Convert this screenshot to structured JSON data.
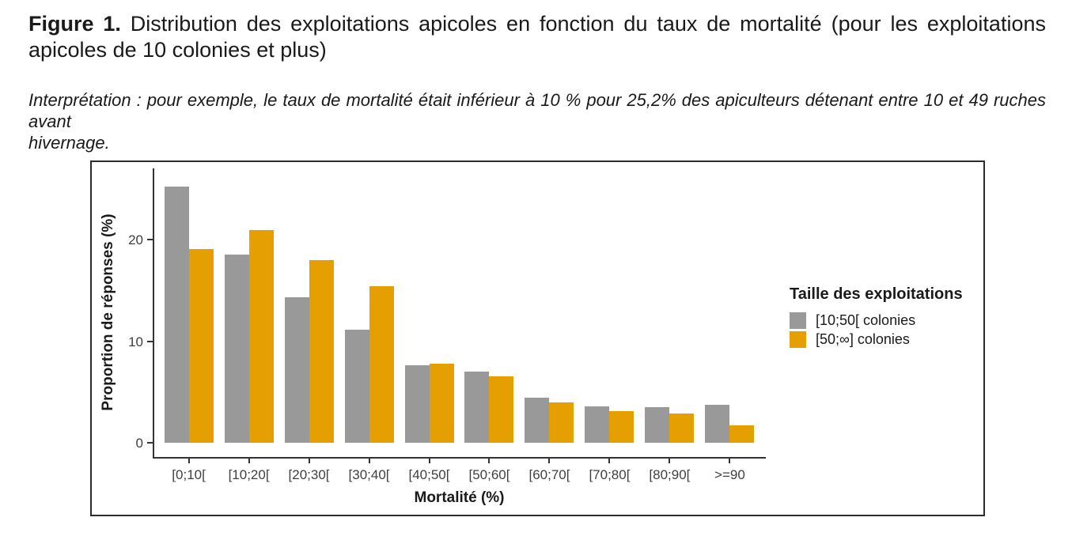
{
  "document": {
    "figure_title": {
      "label": "Figure 1.",
      "line1": "Distribution des exploitations apicoles en fonction du taux de mortalité (pour les exploitations",
      "line2": "apicoles de 10 colonies et plus)"
    },
    "interpretation": {
      "line1": "Interprétation : pour exemple, le taux de mortalité était inférieur à 10 % pour 25,2% des apiculteurs détenant entre 10 et 49 ruches avant",
      "line2": "hivernage."
    }
  },
  "chart_data": {
    "type": "bar",
    "title": "",
    "xlabel": "Mortalité (%)",
    "ylabel": "Proportion de réponses (%)",
    "categories": [
      "[0;10[",
      "[10;20[",
      "[20;30[",
      "[30;40[",
      "[40;50[",
      "[50;60[",
      "[60;70[",
      "[70;80[",
      "[80;90[",
      ">=90"
    ],
    "series": [
      {
        "name": "[10;50[ colonies",
        "color": "#999999",
        "values": [
          25.2,
          18.5,
          14.3,
          11.1,
          7.6,
          7.0,
          4.4,
          3.6,
          3.5,
          3.7
        ]
      },
      {
        "name": "[50;∞] colonies",
        "color": "#E69F00",
        "values": [
          19.1,
          20.9,
          18.0,
          15.4,
          7.8,
          6.5,
          4.0,
          3.1,
          2.9,
          1.7
        ]
      }
    ],
    "yticks": [
      0,
      10,
      20
    ],
    "ylim": [
      0,
      27.2
    ],
    "grid": false,
    "legend_position": "right",
    "legend_title": "Taille des exploitations",
    "axis_color": "#333333",
    "tick_label_color": "#404040"
  }
}
